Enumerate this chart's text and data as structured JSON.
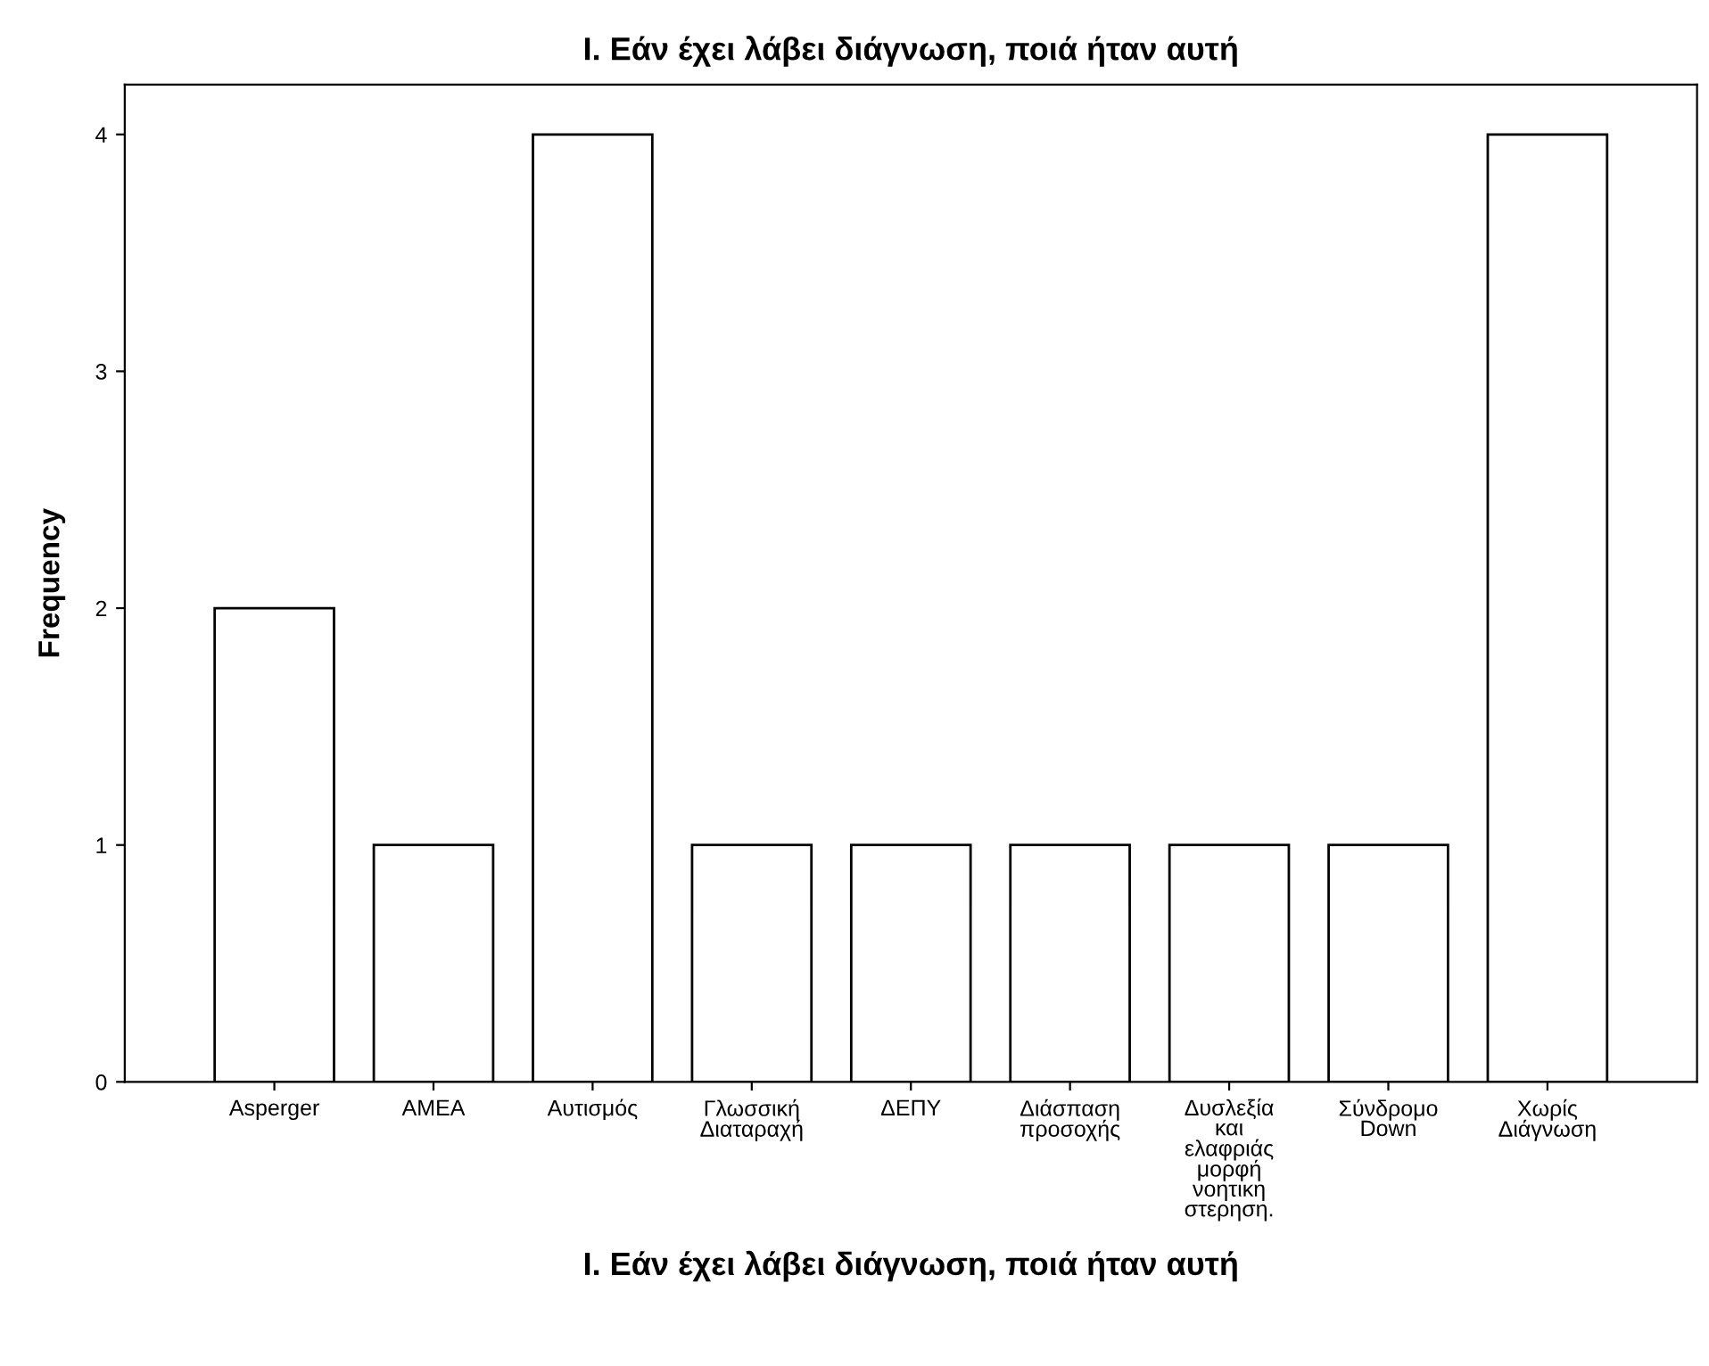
{
  "chart_data": {
    "type": "bar",
    "title": "I. Εάν έχει λάβει διάγνωση, ποιά ήταν αυτή",
    "xlabel": "I. Εάν έχει λάβει διάγνωση, ποιά ήταν αυτή",
    "ylabel": "Frequency",
    "categories": [
      "Asperger",
      "ΑΜΕΑ",
      "Αυτισμός",
      "Γλωσσική\nΔιαταραχή",
      "ΔΕΠΥ",
      "Διάσπαση\nπροσοχής",
      "Δυσλεξία\nκαι\nελαφριάς\nμορφή\nνοητικη\nστερηση.",
      "Σύνδρομο\nDown",
      "Χωρίς\nΔιάγνωση"
    ],
    "values": [
      2,
      1,
      4,
      1,
      1,
      1,
      1,
      1,
      4
    ],
    "color": "#ffffff",
    "ylim": [
      0,
      4.21
    ],
    "yticks": [
      0,
      1,
      2,
      3,
      4
    ],
    "grid": false
  }
}
